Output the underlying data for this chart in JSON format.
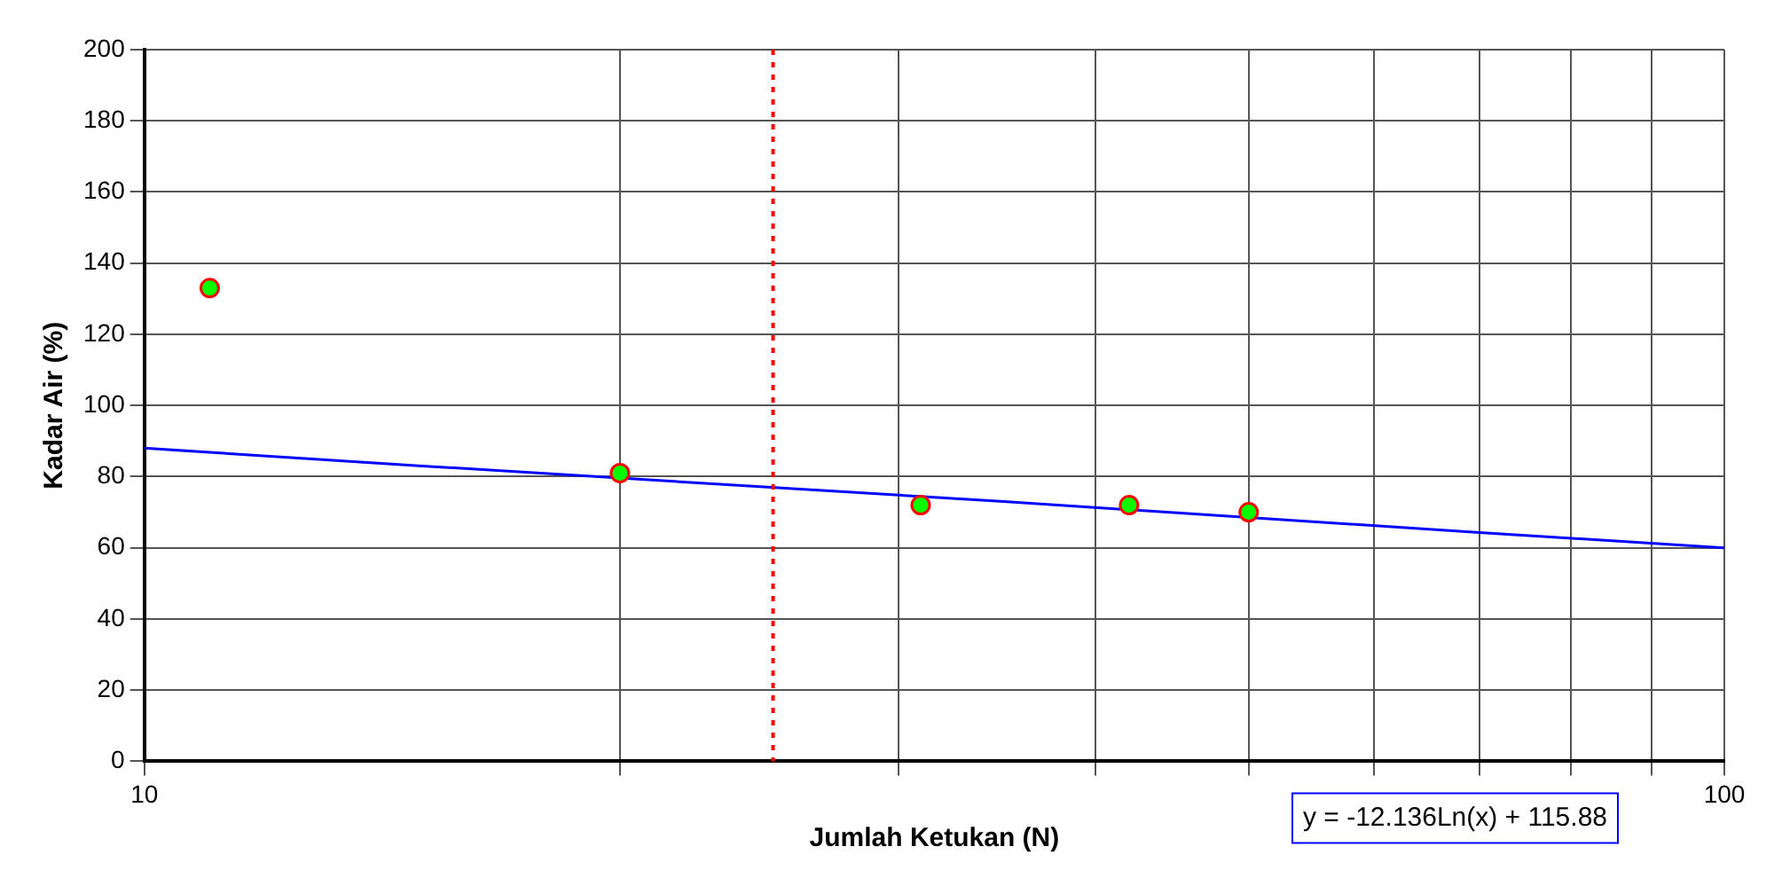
{
  "chart_data": {
    "type": "scatter",
    "xlabel": "Jumlah Ketukan (N)",
    "ylabel": "Kadar Air (%)",
    "log": "x",
    "xlim": [
      10,
      100
    ],
    "xticks": [
      10,
      {
        "value": 20,
        "label": null
      },
      {
        "value": 30,
        "label": null
      },
      {
        "value": 40,
        "label": null
      },
      {
        "value": 50,
        "label": null
      },
      {
        "value": 60,
        "label": null
      },
      {
        "value": 70,
        "label": null
      },
      {
        "value": 80,
        "label": null
      },
      {
        "value": 90,
        "label": null
      },
      100
    ],
    "ylim": [
      0,
      200
    ],
    "yticks": [
      0,
      20,
      40,
      60,
      80,
      100,
      120,
      140,
      160,
      180,
      200
    ],
    "grid": true,
    "legend": false,
    "marker": "circle",
    "x": [
      11,
      20,
      31,
      42,
      50
    ],
    "series": [
      {
        "type": "scatter",
        "color": "#00ff00",
        "values": [
          133,
          81,
          72,
          72,
          70
        ]
      },
      {
        "type": "line",
        "color": "#0000ff",
        "marker": "none",
        "x": [
          10,
          15,
          35,
          70,
          100
        ],
        "values": [
          88,
          83,
          73,
          64.3,
          60
        ]
      }
    ],
    "ref_lines": [
      {
        "axis": "x",
        "value": 25,
        "color": "#ff0000",
        "line_style": "dotted"
      }
    ],
    "annotations": [
      "y = -12.136Ln(x) + 115.88"
    ]
  }
}
